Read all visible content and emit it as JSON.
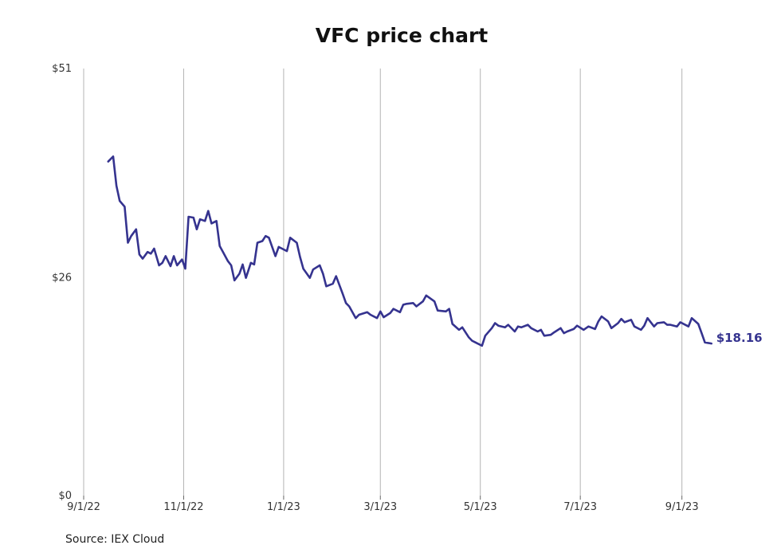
{
  "chart_data": {
    "type": "line",
    "title": "VFC price chart",
    "source": "Source: IEX Cloud",
    "colors": {
      "line": "#35338f",
      "grid": "#b4b4b4"
    },
    "ylim": [
      0,
      51
    ],
    "yticks": [
      0,
      26,
      51
    ],
    "ytick_labels": [
      "$0",
      "$26",
      "$51"
    ],
    "xlim": [
      "2022-09-01",
      "2023-10-12"
    ],
    "xticks": [
      "2022-09-01",
      "2022-11-01",
      "2023-01-01",
      "2023-03-01",
      "2023-05-01",
      "2023-07-01",
      "2023-09-01"
    ],
    "xtick_labels": [
      "9/1/22",
      "11/1/22",
      "1/1/23",
      "3/1/23",
      "5/1/23",
      "7/1/23",
      "9/1/23"
    ],
    "grid": "vertical",
    "last_value_label": "$18.16",
    "series": [
      {
        "x": [
          "2022-09-16",
          "2022-09-19",
          "2022-09-21",
          "2022-09-23",
          "2022-09-26",
          "2022-09-28",
          "2022-09-30",
          "2022-10-03",
          "2022-10-05",
          "2022-10-07",
          "2022-10-10",
          "2022-10-12",
          "2022-10-14",
          "2022-10-17",
          "2022-10-19",
          "2022-10-21",
          "2022-10-24",
          "2022-10-26",
          "2022-10-28",
          "2022-10-31",
          "2022-11-02",
          "2022-11-04",
          "2022-11-07",
          "2022-11-09",
          "2022-11-11",
          "2022-11-14",
          "2022-11-16",
          "2022-11-18",
          "2022-11-21",
          "2022-11-23",
          "2022-11-25",
          "2022-11-28",
          "2022-11-30",
          "2022-12-02",
          "2022-12-05",
          "2022-12-07",
          "2022-12-09",
          "2022-12-12",
          "2022-12-14",
          "2022-12-16",
          "2022-12-19",
          "2022-12-21",
          "2022-12-23",
          "2022-12-27",
          "2022-12-29",
          "2023-01-03",
          "2023-01-05",
          "2023-01-09",
          "2023-01-11",
          "2023-01-13",
          "2023-01-17",
          "2023-01-19",
          "2023-01-23",
          "2023-01-25",
          "2023-01-27",
          "2023-01-31",
          "2023-02-02",
          "2023-02-06",
          "2023-02-08",
          "2023-02-10",
          "2023-02-14",
          "2023-02-16",
          "2023-02-21",
          "2023-02-23",
          "2023-02-27",
          "2023-03-01",
          "2023-03-03",
          "2023-03-07",
          "2023-03-09",
          "2023-03-13",
          "2023-03-15",
          "2023-03-17",
          "2023-03-21",
          "2023-03-23",
          "2023-03-27",
          "2023-03-29",
          "2023-04-03",
          "2023-04-05",
          "2023-04-10",
          "2023-04-12",
          "2023-04-14",
          "2023-04-18",
          "2023-04-20",
          "2023-04-24",
          "2023-04-26",
          "2023-04-28",
          "2023-05-02",
          "2023-05-04",
          "2023-05-08",
          "2023-05-10",
          "2023-05-12",
          "2023-05-16",
          "2023-05-18",
          "2023-05-22",
          "2023-05-24",
          "2023-05-26",
          "2023-05-30",
          "2023-06-01",
          "2023-06-05",
          "2023-06-07",
          "2023-06-09",
          "2023-06-13",
          "2023-06-15",
          "2023-06-19",
          "2023-06-21",
          "2023-06-23",
          "2023-06-27",
          "2023-06-29",
          "2023-07-03",
          "2023-07-06",
          "2023-07-10",
          "2023-07-12",
          "2023-07-14",
          "2023-07-18",
          "2023-07-20",
          "2023-07-24",
          "2023-07-26",
          "2023-07-28",
          "2023-08-01",
          "2023-08-03",
          "2023-08-07",
          "2023-08-09",
          "2023-08-11",
          "2023-08-15",
          "2023-08-17",
          "2023-08-21",
          "2023-08-23",
          "2023-08-25",
          "2023-08-29",
          "2023-08-31",
          "2023-09-05",
          "2023-09-07",
          "2023-09-11",
          "2023-09-13",
          "2023-09-15",
          "2023-09-19"
        ],
        "y": [
          39.9,
          40.5,
          37.0,
          35.2,
          34.5,
          30.2,
          31.0,
          31.8,
          28.8,
          28.3,
          29.1,
          28.9,
          29.5,
          27.5,
          27.8,
          28.6,
          27.4,
          28.6,
          27.5,
          28.2,
          27.1,
          33.3,
          33.2,
          31.8,
          33.0,
          32.8,
          34.0,
          32.5,
          32.8,
          29.8,
          29.1,
          28.0,
          27.5,
          25.7,
          26.5,
          27.6,
          26.0,
          27.8,
          27.6,
          30.2,
          30.4,
          31.0,
          30.8,
          28.6,
          29.7,
          29.2,
          30.8,
          30.2,
          28.5,
          27.1,
          26.0,
          27.0,
          27.5,
          26.5,
          25.0,
          25.3,
          26.2,
          24.1,
          23.0,
          22.6,
          21.2,
          21.6,
          21.9,
          21.6,
          21.2,
          22.0,
          21.3,
          21.8,
          22.3,
          21.9,
          22.8,
          22.9,
          23.0,
          22.6,
          23.2,
          23.9,
          23.2,
          22.1,
          22.0,
          22.3,
          20.5,
          19.8,
          20.1,
          18.9,
          18.5,
          18.3,
          17.9,
          19.1,
          20.0,
          20.6,
          20.3,
          20.1,
          20.4,
          19.6,
          20.2,
          20.1,
          20.4,
          20.0,
          19.6,
          19.8,
          19.1,
          19.2,
          19.5,
          20.0,
          19.4,
          19.6,
          19.9,
          20.3,
          19.8,
          20.2,
          19.9,
          20.8,
          21.4,
          20.8,
          20.0,
          20.6,
          21.1,
          20.7,
          21.0,
          20.2,
          19.8,
          20.3,
          21.2,
          20.2,
          20.6,
          20.7,
          20.4,
          20.4,
          20.2,
          20.7,
          20.2,
          21.2,
          20.5,
          19.4,
          18.3,
          18.16
        ]
      }
    ]
  }
}
